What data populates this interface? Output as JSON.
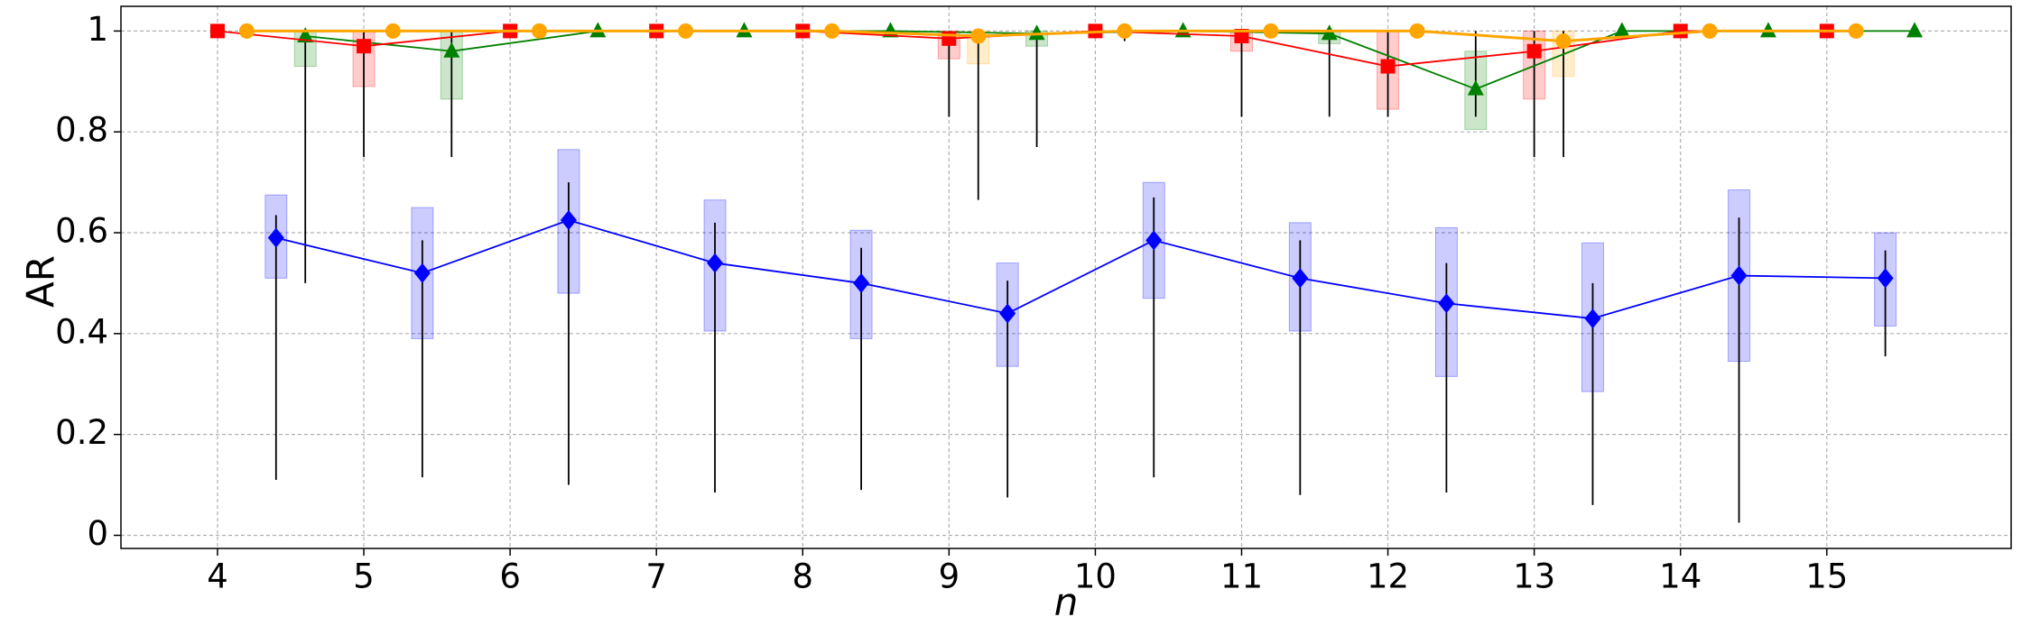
{
  "chart_data": {
    "type": "box-line",
    "x_label": "n",
    "y_label": "AR",
    "xlim": [
      3.34,
      16.26
    ],
    "ylim": [
      -0.026,
      1.049
    ],
    "xticks": [
      4,
      5,
      6,
      7,
      8,
      9,
      10,
      11,
      12,
      13,
      14,
      15
    ],
    "yticks": [
      0,
      0.2,
      0.4,
      0.6,
      0.8,
      1
    ],
    "grid": true,
    "series": [
      {
        "color": "#0000ff",
        "marker": "diamond",
        "x": [
          4.4,
          5.4,
          6.4,
          7.4,
          8.4,
          9.4,
          10.4,
          11.4,
          12.4,
          13.4,
          14.4,
          15.4
        ],
        "values": [
          0.59,
          0.52,
          0.625,
          0.54,
          0.5,
          0.44,
          0.585,
          0.51,
          0.46,
          0.43,
          0.515,
          0.51
        ],
        "q1": [
          0.51,
          0.39,
          0.48,
          0.405,
          0.39,
          0.335,
          0.47,
          0.405,
          0.315,
          0.285,
          0.345,
          0.415
        ],
        "q3": [
          0.675,
          0.65,
          0.765,
          0.665,
          0.605,
          0.54,
          0.7,
          0.62,
          0.61,
          0.58,
          0.685,
          0.6
        ],
        "min": [
          0.11,
          0.115,
          0.1,
          0.085,
          0.09,
          0.075,
          0.115,
          0.08,
          0.085,
          0.06,
          0.025,
          0.355
        ],
        "max": [
          0.635,
          0.585,
          0.7,
          0.62,
          0.57,
          0.505,
          0.67,
          0.585,
          0.54,
          0.5,
          0.63,
          0.565
        ]
      },
      {
        "color": "#008000",
        "marker": "triangle",
        "x": [
          4.6,
          5.6,
          6.6,
          7.6,
          8.6,
          9.6,
          10.6,
          11.6,
          12.6,
          13.6,
          14.6,
          15.6
        ],
        "values": [
          0.99,
          0.96,
          1,
          1,
          1,
          0.995,
          1,
          0.995,
          0.885,
          1,
          1,
          1
        ],
        "q1": [
          0.93,
          0.865,
          1,
          1,
          1,
          0.97,
          1,
          0.975,
          0.805,
          1,
          1,
          1
        ],
        "q3": [
          1,
          1,
          1,
          1,
          1,
          1,
          1,
          1,
          0.96,
          1,
          1,
          1
        ],
        "min": [
          0.5,
          0.75,
          1,
          1,
          1,
          0.77,
          1,
          0.83,
          0.83,
          1,
          1,
          1
        ],
        "max": [
          1,
          1,
          1,
          1,
          1,
          1,
          1,
          1,
          1,
          1,
          1,
          1
        ]
      },
      {
        "color": "#ff0000",
        "marker": "square",
        "x": [
          4,
          5,
          6,
          7,
          8,
          9,
          10,
          11,
          12,
          13,
          14,
          15
        ],
        "values": [
          1,
          0.97,
          1,
          1,
          1,
          0.985,
          1,
          0.99,
          0.93,
          0.96,
          1,
          1
        ],
        "q1": [
          1,
          0.89,
          1,
          1,
          1,
          0.945,
          1,
          0.96,
          0.845,
          0.865,
          1,
          1
        ],
        "q3": [
          1,
          1,
          1,
          1,
          1,
          1,
          1,
          1,
          1,
          1,
          1,
          1
        ],
        "min": [
          1,
          0.75,
          1,
          1,
          1,
          0.83,
          1,
          0.83,
          0.83,
          0.75,
          1,
          1
        ],
        "max": [
          1,
          1,
          1,
          1,
          1,
          1,
          1,
          1,
          1,
          1,
          1,
          1
        ]
      },
      {
        "color": "#ffa500",
        "marker": "circle",
        "x": [
          4.2,
          5.2,
          6.2,
          7.2,
          8.2,
          9.2,
          10.2,
          11.2,
          12.2,
          13.2,
          14.2,
          15.2
        ],
        "values": [
          1,
          1,
          1,
          1,
          1,
          0.99,
          1,
          1,
          1,
          0.98,
          1,
          1
        ],
        "q1": [
          1,
          1,
          1,
          1,
          1,
          0.935,
          1,
          1,
          1,
          0.91,
          1,
          1
        ],
        "q3": [
          1,
          1,
          1,
          1,
          1,
          1,
          1,
          1,
          1,
          1,
          1,
          1
        ],
        "min": [
          1,
          1,
          1,
          1,
          1,
          0.665,
          0.98,
          1,
          1,
          0.75,
          1,
          1
        ],
        "max": [
          1,
          1,
          1,
          1,
          1,
          1,
          1,
          1,
          1,
          1,
          1,
          1
        ]
      }
    ]
  }
}
